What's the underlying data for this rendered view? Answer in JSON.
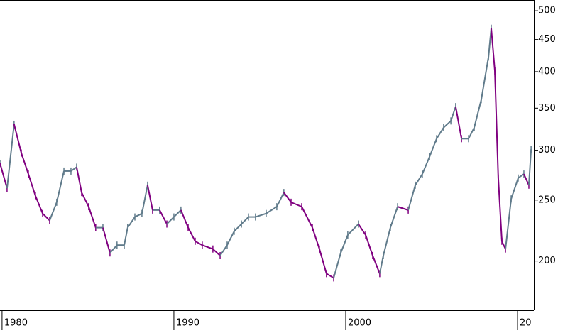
{
  "chart_data": {
    "type": "line",
    "log_scale": true,
    "color": "#607b8b",
    "down_color": "#800080",
    "x": [
      1979.88,
      1980.29,
      1980.7,
      1981.12,
      1981.53,
      1981.94,
      1982.36,
      1982.77,
      1983.18,
      1983.6,
      1984.01,
      1984.34,
      1984.63,
      1985.04,
      1985.45,
      1985.87,
      1986.28,
      1986.69,
      1987.11,
      1987.31,
      1987.73,
      1988.14,
      1988.47,
      1988.76,
      1989.17,
      1989.59,
      1990.0,
      1990.41,
      1990.83,
      1991.24,
      1991.65,
      1992.27,
      1992.69,
      1993.1,
      1993.51,
      1993.93,
      1994.34,
      1994.75,
      1995.37,
      1995.99,
      1996.4,
      1996.82,
      1997.44,
      1998.06,
      1998.47,
      1998.88,
      1999.3,
      1999.71,
      2000.12,
      2000.74,
      2001.16,
      2001.57,
      2001.98,
      2002.19,
      2002.6,
      2003.02,
      2003.64,
      2004.05,
      2004.46,
      2004.88,
      2005.29,
      2005.7,
      2006.12,
      2006.4,
      2006.74,
      2007.15,
      2007.48,
      2007.89,
      2008.31,
      2008.47,
      2008.68,
      2008.88,
      2009.09,
      2009.3,
      2009.63,
      2010.04,
      2010.37,
      2010.66,
      2010.79
    ],
    "values": [
      286,
      261,
      330,
      297,
      275,
      254,
      238,
      232,
      248,
      278,
      278,
      282,
      257,
      244,
      226,
      226,
      206,
      212,
      212,
      226,
      235,
      238,
      264,
      241,
      241,
      229,
      235,
      241,
      226,
      215,
      212,
      209,
      204,
      212,
      223,
      229,
      235,
      235,
      238,
      244,
      257,
      248,
      244,
      226,
      209,
      191,
      188,
      206,
      220,
      229,
      220,
      204,
      191,
      204,
      226,
      244,
      241,
      264,
      275,
      293,
      313,
      326,
      334,
      352,
      313,
      313,
      326,
      361,
      422,
      469,
      401,
      271,
      215,
      209,
      251,
      271,
      275,
      264,
      301
    ],
    "xlim": [
      1979.88,
      2010.95
    ],
    "ylim": [
      167,
      520
    ],
    "xticks": [
      1980,
      1990,
      2000,
      {
        "value": 2010,
        "label": "20"
      }
    ],
    "yticks": [
      200,
      250,
      300,
      350,
      400,
      450,
      500
    ]
  }
}
